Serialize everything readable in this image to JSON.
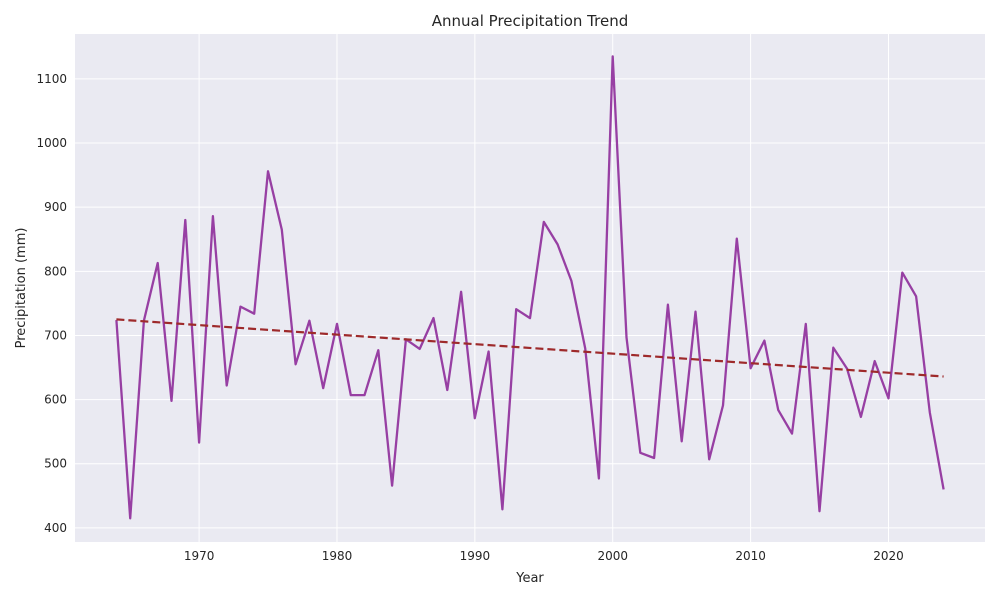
{
  "chart_data": {
    "type": "line",
    "title": "Annual Precipitation Trend",
    "xlabel": "Year",
    "ylabel": "Precipitation (mm)",
    "xlim": [
      1961,
      2027
    ],
    "ylim": [
      378,
      1170
    ],
    "xticks": [
      1970,
      1980,
      1990,
      2000,
      2010,
      2020
    ],
    "yticks": [
      400,
      500,
      600,
      700,
      800,
      900,
      1000,
      1100
    ],
    "grid": true,
    "series": [
      {
        "style": "solid",
        "color": "#8e2c9a",
        "x": [
          1964,
          1965,
          1966,
          1967,
          1968,
          1969,
          1970,
          1971,
          1972,
          1973,
          1974,
          1975,
          1976,
          1977,
          1978,
          1979,
          1980,
          1981,
          1982,
          1983,
          1984,
          1985,
          1986,
          1987,
          1988,
          1989,
          1990,
          1991,
          1992,
          1993,
          1994,
          1995,
          1996,
          1997,
          1998,
          1999,
          2000,
          2001,
          2002,
          2003,
          2004,
          2005,
          2006,
          2007,
          2008,
          2009,
          2010,
          2011,
          2012,
          2013,
          2014,
          2015,
          2016,
          2017,
          2018,
          2019,
          2020,
          2021,
          2022,
          2023,
          2024
        ],
        "y": [
          724,
          415,
          723,
          813,
          598,
          880,
          533,
          886,
          622,
          745,
          734,
          956,
          865,
          655,
          723,
          618,
          718,
          607,
          607,
          677,
          466,
          694,
          679,
          727,
          615,
          768,
          571,
          675,
          429,
          741,
          727,
          877,
          842,
          785,
          680,
          477,
          1135,
          697,
          517,
          509,
          748,
          535,
          737,
          507,
          591,
          851,
          649,
          692,
          584,
          547,
          718,
          426,
          681,
          648,
          573,
          660,
          602,
          798,
          761,
          580,
          460
        ]
      },
      {
        "style": "dashed",
        "color": "#9e2a2b",
        "x": [
          1964,
          2024
        ],
        "y": [
          725,
          636
        ]
      }
    ]
  }
}
